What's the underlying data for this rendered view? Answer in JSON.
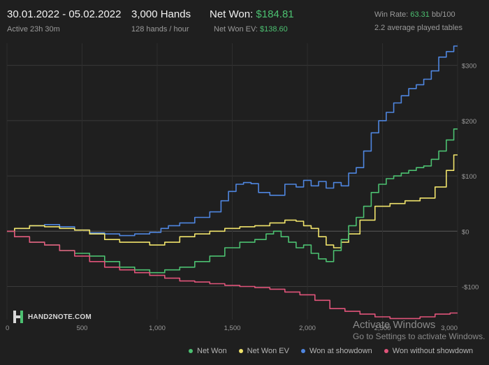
{
  "header": {
    "date_range": "30.01.2022 - 05.02.2022",
    "active": "Active 23h 30m",
    "hands": "3,000 Hands",
    "hands_rate": "128 hands / hour",
    "net_won_label": "Net Won: ",
    "net_won_value": "$184.81",
    "net_won_ev_label": "Net Won  EV: ",
    "net_won_ev_value": "$138.60",
    "win_rate_label": "Win Rate: ",
    "win_rate_value": "63.31",
    "win_rate_unit": " bb/100",
    "avg_tables": "2.2 average played tables"
  },
  "logo": {
    "text": "HAND2NOTE.COM"
  },
  "legend": [
    {
      "label": "Net Won",
      "color": "#4cc071"
    },
    {
      "label": "Net Won  EV",
      "color": "#f0e36b"
    },
    {
      "label": "Won at showdown",
      "color": "#4f86e0"
    },
    {
      "label": "Won without showdown",
      "color": "#e0547a"
    }
  ],
  "watermark": {
    "line1": "Activate Windows",
    "line2": "Go to Settings to activate Windows."
  },
  "chart_data": {
    "type": "line",
    "title": "",
    "xlabel": "",
    "ylabel": "",
    "xlim": [
      0,
      3000
    ],
    "ylim": [
      -160,
      340
    ],
    "x_ticks": [
      0,
      500,
      1000,
      1500,
      2000,
      2500,
      3000
    ],
    "x_tick_labels": [
      "0",
      "500",
      "1,000",
      "1,500",
      "2,000",
      "2,500",
      "3,000"
    ],
    "y_ticks": [
      300,
      200,
      100,
      0,
      -100
    ],
    "y_tick_labels": [
      "$300",
      "$200",
      "$100",
      "$0",
      "-$100"
    ],
    "grid": true,
    "legend_position": "bottom",
    "series": [
      {
        "name": "Won at showdown",
        "color": "#4f86e0",
        "x": [
          0,
          100,
          200,
          300,
          400,
          500,
          600,
          700,
          800,
          900,
          1000,
          1050,
          1100,
          1200,
          1300,
          1400,
          1450,
          1500,
          1550,
          1600,
          1650,
          1700,
          1800,
          1900,
          1950,
          2000,
          2050,
          2100,
          2150,
          2200,
          2250,
          2300,
          2350,
          2400,
          2450,
          2500,
          2550,
          2600,
          2650,
          2700,
          2750,
          2800,
          2850,
          2900,
          2950,
          3000
        ],
        "values": [
          0,
          5,
          10,
          12,
          8,
          2,
          -3,
          -5,
          -8,
          -5,
          -2,
          5,
          10,
          15,
          25,
          35,
          55,
          72,
          85,
          88,
          86,
          70,
          65,
          85,
          80,
          92,
          82,
          90,
          78,
          88,
          82,
          105,
          115,
          145,
          178,
          200,
          215,
          232,
          245,
          258,
          265,
          275,
          290,
          315,
          325,
          335
        ]
      },
      {
        "name": "Net Won  EV",
        "color": "#f0e36b",
        "x": [
          0,
          100,
          200,
          300,
          400,
          500,
          600,
          700,
          800,
          900,
          1000,
          1100,
          1200,
          1300,
          1400,
          1500,
          1600,
          1700,
          1800,
          1900,
          1950,
          2000,
          2050,
          2100,
          2150,
          2200,
          2250,
          2300,
          2400,
          2500,
          2600,
          2700,
          2800,
          2900,
          2950,
          3000
        ],
        "values": [
          0,
          5,
          10,
          8,
          5,
          2,
          -5,
          -15,
          -20,
          -20,
          -25,
          -20,
          -10,
          -5,
          0,
          5,
          8,
          10,
          15,
          20,
          18,
          10,
          5,
          -10,
          -25,
          -30,
          -20,
          -5,
          20,
          45,
          50,
          55,
          60,
          80,
          110,
          138
        ]
      },
      {
        "name": "Net Won",
        "color": "#4cc071",
        "x": [
          0,
          100,
          200,
          300,
          400,
          500,
          600,
          700,
          800,
          900,
          1000,
          1100,
          1200,
          1300,
          1400,
          1500,
          1600,
          1700,
          1750,
          1800,
          1850,
          1900,
          1950,
          2000,
          2050,
          2100,
          2150,
          2200,
          2250,
          2300,
          2350,
          2400,
          2450,
          2500,
          2550,
          2600,
          2650,
          2700,
          2750,
          2800,
          2850,
          2900,
          2950,
          3000
        ],
        "values": [
          0,
          -10,
          -20,
          -25,
          -35,
          -40,
          -45,
          -55,
          -65,
          -70,
          -75,
          -70,
          -65,
          -55,
          -45,
          -30,
          -20,
          -15,
          -5,
          0,
          -10,
          -20,
          -30,
          -25,
          -40,
          -50,
          -55,
          -35,
          -15,
          10,
          25,
          45,
          70,
          85,
          95,
          100,
          105,
          110,
          115,
          118,
          130,
          145,
          165,
          185
        ]
      },
      {
        "name": "Won without showdown",
        "color": "#e0547a",
        "x": [
          0,
          100,
          200,
          300,
          400,
          500,
          600,
          700,
          800,
          900,
          1000,
          1100,
          1200,
          1300,
          1400,
          1500,
          1600,
          1700,
          1800,
          1900,
          2000,
          2100,
          2200,
          2300,
          2400,
          2500,
          2600,
          2700,
          2800,
          2900,
          3000
        ],
        "values": [
          0,
          -10,
          -20,
          -25,
          -35,
          -45,
          -55,
          -65,
          -70,
          -75,
          -80,
          -85,
          -90,
          -92,
          -95,
          -98,
          -100,
          -102,
          -105,
          -110,
          -115,
          -125,
          -140,
          -145,
          -150,
          -155,
          -158,
          -158,
          -155,
          -150,
          -148
        ]
      }
    ]
  }
}
